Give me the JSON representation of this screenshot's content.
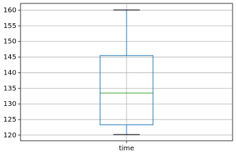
{
  "chart_data": {
    "type": "box",
    "categories": [
      "time"
    ],
    "stats": [
      {
        "whislo": 120.2,
        "q1": 123.3,
        "median": 133.5,
        "q3": 145.5,
        "whishi": 160.1
      }
    ],
    "ylim": [
      118.2,
      162.2
    ],
    "yticks": [
      120,
      125,
      130,
      135,
      140,
      145,
      150,
      155,
      160
    ],
    "grid": true,
    "box_color": "#1f77b4",
    "median_color": "#2ca02c",
    "whisker_color": "#000000"
  }
}
